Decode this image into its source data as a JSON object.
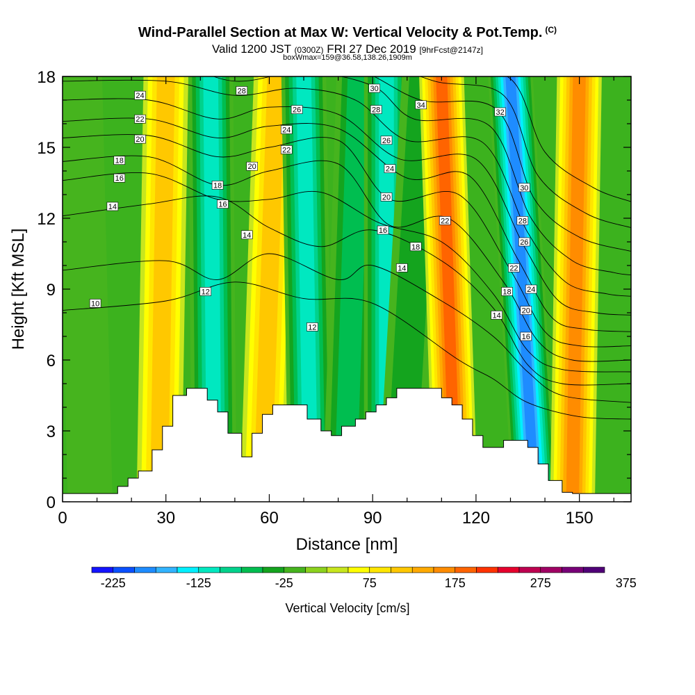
{
  "title": {
    "main": "Wind-Parallel Section at Max W: Vertical Velocity & Pot.Temp.",
    "main_suffix": "(C)",
    "valid_prefix": "Valid 1200 JST",
    "valid_utc": "(0300Z)",
    "valid_date": "FRI 27 Dec 2019",
    "forecast": "[9hrFcst@2147z]",
    "box_info": "boxWmax=159@36.58,138.26,1909m"
  },
  "chart_data": {
    "type": "heatmap",
    "xlabel": "Distance [nm]",
    "ylabel": "Height [Kft MSL]",
    "xlim": [
      0,
      165
    ],
    "ylim": [
      0,
      18
    ],
    "x_ticks": [
      "0",
      "30",
      "60",
      "90",
      "120",
      "150"
    ],
    "y_ticks": [
      "0",
      "3",
      "6",
      "9",
      "12",
      "15",
      "18"
    ],
    "colorbar": {
      "label": "Vertical Velocity [cm/s]",
      "tick_labels": [
        "-225",
        "-125",
        "-25",
        "75",
        "175",
        "275",
        "375"
      ],
      "colors": [
        "#1414ff",
        "#0a50ff",
        "#1e8cff",
        "#32b4ff",
        "#00f0ff",
        "#00e8c0",
        "#00d28c",
        "#00be50",
        "#14a41e",
        "#46b41e",
        "#8cd21e",
        "#c8e61e",
        "#ffff00",
        "#ffe600",
        "#ffc800",
        "#ffaa00",
        "#ff8c00",
        "#ff6400",
        "#ff3200",
        "#e6002d",
        "#be0050",
        "#a00064",
        "#780078",
        "#500078"
      ]
    },
    "terrain_kft": [
      [
        0,
        0.35
      ],
      [
        16,
        0.35
      ],
      [
        16,
        0.65
      ],
      [
        19,
        0.65
      ],
      [
        19,
        1.0
      ],
      [
        22,
        1.0
      ],
      [
        22,
        1.3
      ],
      [
        26,
        1.3
      ],
      [
        26,
        2.2
      ],
      [
        29,
        2.2
      ],
      [
        29,
        3.2
      ],
      [
        32,
        3.2
      ],
      [
        32,
        4.5
      ],
      [
        36,
        4.5
      ],
      [
        36,
        4.8
      ],
      [
        42,
        4.8
      ],
      [
        42,
        4.3
      ],
      [
        45,
        4.3
      ],
      [
        45,
        3.8
      ],
      [
        48,
        3.8
      ],
      [
        48,
        2.9
      ],
      [
        52,
        2.9
      ],
      [
        52,
        1.9
      ],
      [
        55,
        1.9
      ],
      [
        55,
        2.9
      ],
      [
        58,
        2.9
      ],
      [
        58,
        3.7
      ],
      [
        61,
        3.7
      ],
      [
        61,
        4.1
      ],
      [
        71,
        4.1
      ],
      [
        71,
        3.5
      ],
      [
        75,
        3.5
      ],
      [
        75,
        3.0
      ],
      [
        78,
        3.0
      ],
      [
        78,
        2.8
      ],
      [
        81,
        2.8
      ],
      [
        81,
        3.2
      ],
      [
        85,
        3.2
      ],
      [
        85,
        3.5
      ],
      [
        88,
        3.5
      ],
      [
        88,
        3.8
      ],
      [
        91,
        3.8
      ],
      [
        91,
        4.1
      ],
      [
        94,
        4.1
      ],
      [
        94,
        4.4
      ],
      [
        97,
        4.4
      ],
      [
        97,
        4.8
      ],
      [
        110,
        4.8
      ],
      [
        110,
        4.4
      ],
      [
        113,
        4.4
      ],
      [
        113,
        4.1
      ],
      [
        116,
        4.1
      ],
      [
        116,
        3.5
      ],
      [
        119,
        3.5
      ],
      [
        119,
        2.8
      ],
      [
        122,
        2.8
      ],
      [
        122,
        2.3
      ],
      [
        128,
        2.3
      ],
      [
        128,
        2.6
      ],
      [
        135,
        2.6
      ],
      [
        135,
        2.3
      ],
      [
        138,
        2.3
      ],
      [
        138,
        1.6
      ],
      [
        141,
        1.6
      ],
      [
        141,
        0.9
      ],
      [
        145,
        0.9
      ],
      [
        145,
        0.4
      ],
      [
        148,
        0.4
      ],
      [
        148,
        0.35
      ],
      [
        165,
        0.35
      ]
    ],
    "w_bands_cms": [
      {
        "x0": 8,
        "x1": 5,
        "w": -25
      },
      {
        "x0": 28,
        "x1": 30,
        "w": 110
      },
      {
        "x0": 44,
        "x1": 43,
        "w": -135
      },
      {
        "x0": 58,
        "x1": 62,
        "w": 105
      },
      {
        "x0": 72,
        "x1": 70,
        "w": -135
      },
      {
        "x0": 82,
        "x1": 86,
        "w": -65
      },
      {
        "x0": 94,
        "x1": 94,
        "w": -130
      },
      {
        "x0": 98,
        "x1": 105,
        "w": -55
      },
      {
        "x0": 114,
        "x1": 110,
        "w": 175
      },
      {
        "x0": 137,
        "x1": 130,
        "w": -210
      },
      {
        "x0": 148,
        "x1": 150,
        "w": 160
      }
    ],
    "theta_contours_c": [
      {
        "value": 10,
        "heights_kft": [
          [
            0,
            8.1
          ],
          [
            30,
            8.5
          ],
          [
            50,
            9.3
          ],
          [
            70,
            8.6
          ],
          [
            90,
            8.4
          ],
          [
            115,
            6.0
          ],
          [
            125,
            5.2
          ],
          [
            135,
            4.2
          ],
          [
            150,
            3.6
          ],
          [
            165,
            3.5
          ]
        ]
      },
      {
        "value": 12,
        "heights_kft": [
          [
            0,
            9.8
          ],
          [
            30,
            10.2
          ],
          [
            45,
            9.4
          ],
          [
            60,
            10.5
          ],
          [
            80,
            9.4
          ],
          [
            90,
            10.0
          ],
          [
            110,
            8.5
          ],
          [
            125,
            7.0
          ],
          [
            135,
            5.5
          ],
          [
            145,
            4.5
          ],
          [
            165,
            4.2
          ]
        ]
      },
      {
        "value": 14,
        "heights_kft": [
          [
            0,
            12.1
          ],
          [
            25,
            12.6
          ],
          [
            45,
            12.9
          ],
          [
            60,
            11.6
          ],
          [
            75,
            10.8
          ],
          [
            90,
            11.5
          ],
          [
            110,
            10.2
          ],
          [
            125,
            8.2
          ],
          [
            135,
            5.8
          ],
          [
            145,
            5.0
          ],
          [
            165,
            5.0
          ]
        ]
      },
      {
        "value": 16,
        "heights_kft": [
          [
            0,
            13.6
          ],
          [
            25,
            13.9
          ],
          [
            45,
            12.8
          ],
          [
            60,
            12.8
          ],
          [
            75,
            13.1
          ],
          [
            92,
            11.8
          ],
          [
            110,
            11.0
          ],
          [
            125,
            8.8
          ],
          [
            135,
            6.4
          ],
          [
            145,
            5.6
          ],
          [
            165,
            5.5
          ]
        ]
      },
      {
        "value": 18,
        "heights_kft": [
          [
            0,
            14.4
          ],
          [
            25,
            14.6
          ],
          [
            45,
            13.4
          ],
          [
            60,
            14.0
          ],
          [
            80,
            14.3
          ],
          [
            95,
            11.7
          ],
          [
            112,
            12.0
          ],
          [
            128,
            9.3
          ],
          [
            138,
            6.8
          ],
          [
            148,
            6.0
          ],
          [
            165,
            6.0
          ]
        ]
      },
      {
        "value": 20,
        "heights_kft": [
          [
            0,
            15.4
          ],
          [
            25,
            15.5
          ],
          [
            45,
            14.6
          ],
          [
            60,
            15.0
          ],
          [
            80,
            15.3
          ],
          [
            95,
            12.8
          ],
          [
            115,
            13.0
          ],
          [
            130,
            9.8
          ],
          [
            140,
            7.2
          ],
          [
            150,
            6.6
          ],
          [
            165,
            6.6
          ]
        ]
      },
      {
        "value": 22,
        "heights_kft": [
          [
            0,
            16.1
          ],
          [
            25,
            16.2
          ],
          [
            45,
            15.4
          ],
          [
            60,
            15.9
          ],
          [
            80,
            15.8
          ],
          [
            100,
            13.7
          ],
          [
            118,
            13.8
          ],
          [
            132,
            10.3
          ],
          [
            142,
            7.8
          ],
          [
            152,
            7.3
          ],
          [
            165,
            7.2
          ]
        ]
      },
      {
        "value": 24,
        "heights_kft": [
          [
            0,
            17.0
          ],
          [
            25,
            17.0
          ],
          [
            45,
            16.2
          ],
          [
            60,
            16.7
          ],
          [
            80,
            16.4
          ],
          [
            98,
            14.5
          ],
          [
            120,
            14.5
          ],
          [
            134,
            10.8
          ],
          [
            144,
            8.5
          ],
          [
            155,
            8.0
          ],
          [
            165,
            7.9
          ]
        ]
      },
      {
        "value": 26,
        "heights_kft": [
          [
            0,
            17.8
          ],
          [
            30,
            17.8
          ],
          [
            50,
            17.2
          ],
          [
            68,
            17.5
          ],
          [
            85,
            17.0
          ],
          [
            100,
            15.3
          ],
          [
            122,
            15.2
          ],
          [
            135,
            11.4
          ],
          [
            146,
            9.3
          ],
          [
            158,
            8.8
          ],
          [
            165,
            8.7
          ]
        ]
      },
      {
        "value": 28,
        "heights_kft": [
          [
            0,
            18.6
          ],
          [
            30,
            18.6
          ],
          [
            50,
            17.8
          ],
          [
            70,
            18.2
          ],
          [
            90,
            17.6
          ],
          [
            102,
            16.2
          ],
          [
            124,
            15.9
          ],
          [
            136,
            12.0
          ],
          [
            148,
            10.2
          ],
          [
            160,
            9.7
          ],
          [
            165,
            9.6
          ]
        ]
      },
      {
        "value": 30,
        "heights_kft": [
          [
            40,
            19.0
          ],
          [
            60,
            18.6
          ],
          [
            85,
            18.3
          ],
          [
            104,
            17.0
          ],
          [
            126,
            16.6
          ],
          [
            137,
            12.8
          ],
          [
            150,
            11.2
          ],
          [
            165,
            10.6
          ]
        ]
      },
      {
        "value": 32,
        "heights_kft": [
          [
            90,
            18.8
          ],
          [
            108,
            17.8
          ],
          [
            128,
            17.2
          ],
          [
            138,
            13.8
          ],
          [
            152,
            12.2
          ],
          [
            165,
            11.6
          ]
        ]
      },
      {
        "value": 34,
        "heights_kft": [
          [
            100,
            19.0
          ],
          [
            110,
            18.4
          ],
          [
            130,
            17.9
          ],
          [
            140,
            14.8
          ],
          [
            154,
            13.3
          ],
          [
            165,
            12.7
          ]
        ]
      }
    ],
    "contour_labels": [
      {
        "text": "24",
        "x": 22.5,
        "y": 17.2
      },
      {
        "text": "22",
        "x": 22.5,
        "y": 16.2
      },
      {
        "text": "20",
        "x": 22.5,
        "y": 15.35
      },
      {
        "text": "18",
        "x": 16.5,
        "y": 14.45
      },
      {
        "text": "16",
        "x": 16.5,
        "y": 13.7
      },
      {
        "text": "14",
        "x": 14.5,
        "y": 12.5
      },
      {
        "text": "10",
        "x": 9.5,
        "y": 8.4
      },
      {
        "text": "28",
        "x": 52,
        "y": 17.4
      },
      {
        "text": "26",
        "x": 68,
        "y": 16.6
      },
      {
        "text": "24",
        "x": 65,
        "y": 15.75
      },
      {
        "text": "22",
        "x": 65,
        "y": 14.9
      },
      {
        "text": "20",
        "x": 55,
        "y": 14.2
      },
      {
        "text": "18",
        "x": 45,
        "y": 13.4
      },
      {
        "text": "16",
        "x": 46.5,
        "y": 12.6
      },
      {
        "text": "14",
        "x": 53.5,
        "y": 11.3
      },
      {
        "text": "12",
        "x": 41.5,
        "y": 8.9
      },
      {
        "text": "12",
        "x": 72.5,
        "y": 7.4
      },
      {
        "text": "30",
        "x": 90.5,
        "y": 17.5
      },
      {
        "text": "28",
        "x": 91,
        "y": 16.6
      },
      {
        "text": "26",
        "x": 94,
        "y": 15.3
      },
      {
        "text": "24",
        "x": 95,
        "y": 14.1
      },
      {
        "text": "20",
        "x": 94,
        "y": 12.9
      },
      {
        "text": "16",
        "x": 93,
        "y": 11.5
      },
      {
        "text": "18",
        "x": 102.5,
        "y": 10.8
      },
      {
        "text": "14",
        "x": 98.5,
        "y": 9.9
      },
      {
        "text": "34",
        "x": 104,
        "y": 16.8
      },
      {
        "text": "22",
        "x": 111,
        "y": 11.9
      },
      {
        "text": "32",
        "x": 127,
        "y": 16.5
      },
      {
        "text": "30",
        "x": 134,
        "y": 13.3
      },
      {
        "text": "28",
        "x": 133.5,
        "y": 11.9
      },
      {
        "text": "26",
        "x": 134,
        "y": 11.0
      },
      {
        "text": "22",
        "x": 131,
        "y": 9.9
      },
      {
        "text": "24",
        "x": 136,
        "y": 9.0
      },
      {
        "text": "18",
        "x": 129,
        "y": 8.9
      },
      {
        "text": "20",
        "x": 134.5,
        "y": 8.1
      },
      {
        "text": "14",
        "x": 126,
        "y": 7.9
      },
      {
        "text": "16",
        "x": 134.5,
        "y": 7.0
      }
    ]
  }
}
